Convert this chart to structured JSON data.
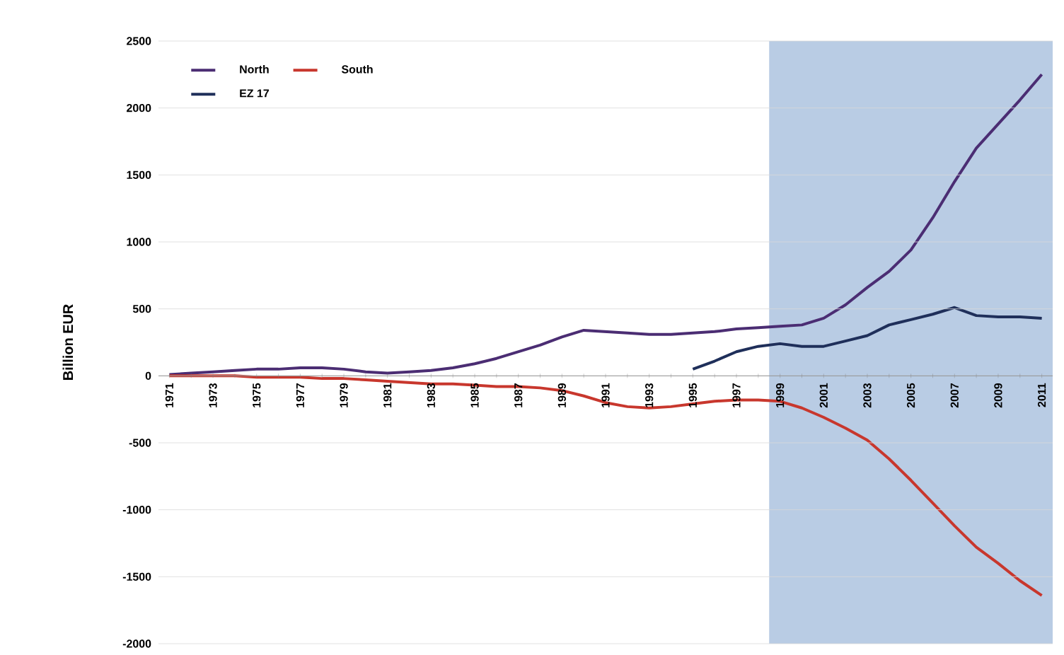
{
  "chart_data": {
    "type": "line",
    "ylabel": "Billion EUR",
    "categories": [
      "1971",
      null,
      "1973",
      null,
      "1975",
      null,
      "1977",
      null,
      "1979",
      null,
      "1981",
      null,
      "1983",
      null,
      "1985",
      null,
      "1987",
      null,
      "1989",
      null,
      "1991",
      null,
      "1993",
      null,
      "1995",
      null,
      "1997",
      null,
      "1999",
      null,
      "2001",
      null,
      "2003",
      null,
      "2005",
      null,
      "2007",
      null,
      "2009",
      null,
      "2011"
    ],
    "series": [
      {
        "name": "North",
        "color": "#4b2d73",
        "values": [
          10,
          20,
          30,
          40,
          50,
          50,
          60,
          60,
          50,
          30,
          20,
          30,
          40,
          60,
          90,
          130,
          180,
          230,
          290,
          340,
          330,
          320,
          310,
          310,
          320,
          330,
          350,
          360,
          370,
          380,
          430,
          530,
          660,
          780,
          940,
          1180,
          1450,
          1700,
          1880,
          2060,
          2250
        ]
      },
      {
        "name": "South",
        "color": "#c8372d",
        "values": [
          0,
          0,
          0,
          0,
          -10,
          -10,
          -10,
          -20,
          -20,
          -30,
          -40,
          -50,
          -60,
          -60,
          -70,
          -80,
          -80,
          -90,
          -110,
          -150,
          -200,
          -230,
          -240,
          -230,
          -210,
          -190,
          -180,
          -180,
          -190,
          -240,
          -310,
          -390,
          -480,
          -620,
          -780,
          -950,
          -1120,
          -1280,
          -1400,
          -1530,
          -1640
        ]
      },
      {
        "name": "EZ 17",
        "color": "#1f2f5a",
        "values": [
          null,
          null,
          null,
          null,
          null,
          null,
          null,
          null,
          null,
          null,
          null,
          null,
          null,
          null,
          null,
          null,
          null,
          null,
          null,
          null,
          null,
          null,
          null,
          null,
          50,
          110,
          180,
          220,
          240,
          220,
          220,
          260,
          300,
          380,
          420,
          460,
          510,
          450,
          440,
          440,
          430
        ]
      }
    ],
    "ylim": [
      -2000,
      2500
    ],
    "yticks": [
      -2000,
      -1500,
      -1000,
      -500,
      0,
      500,
      1000,
      1500,
      2000,
      2500
    ],
    "bands": [
      {
        "axis": "x",
        "from": "1999",
        "to": "2011",
        "color": "#b9cce4"
      }
    ],
    "grid": "y",
    "legend": "top left",
    "marker": "none",
    "line_style": "solid"
  }
}
